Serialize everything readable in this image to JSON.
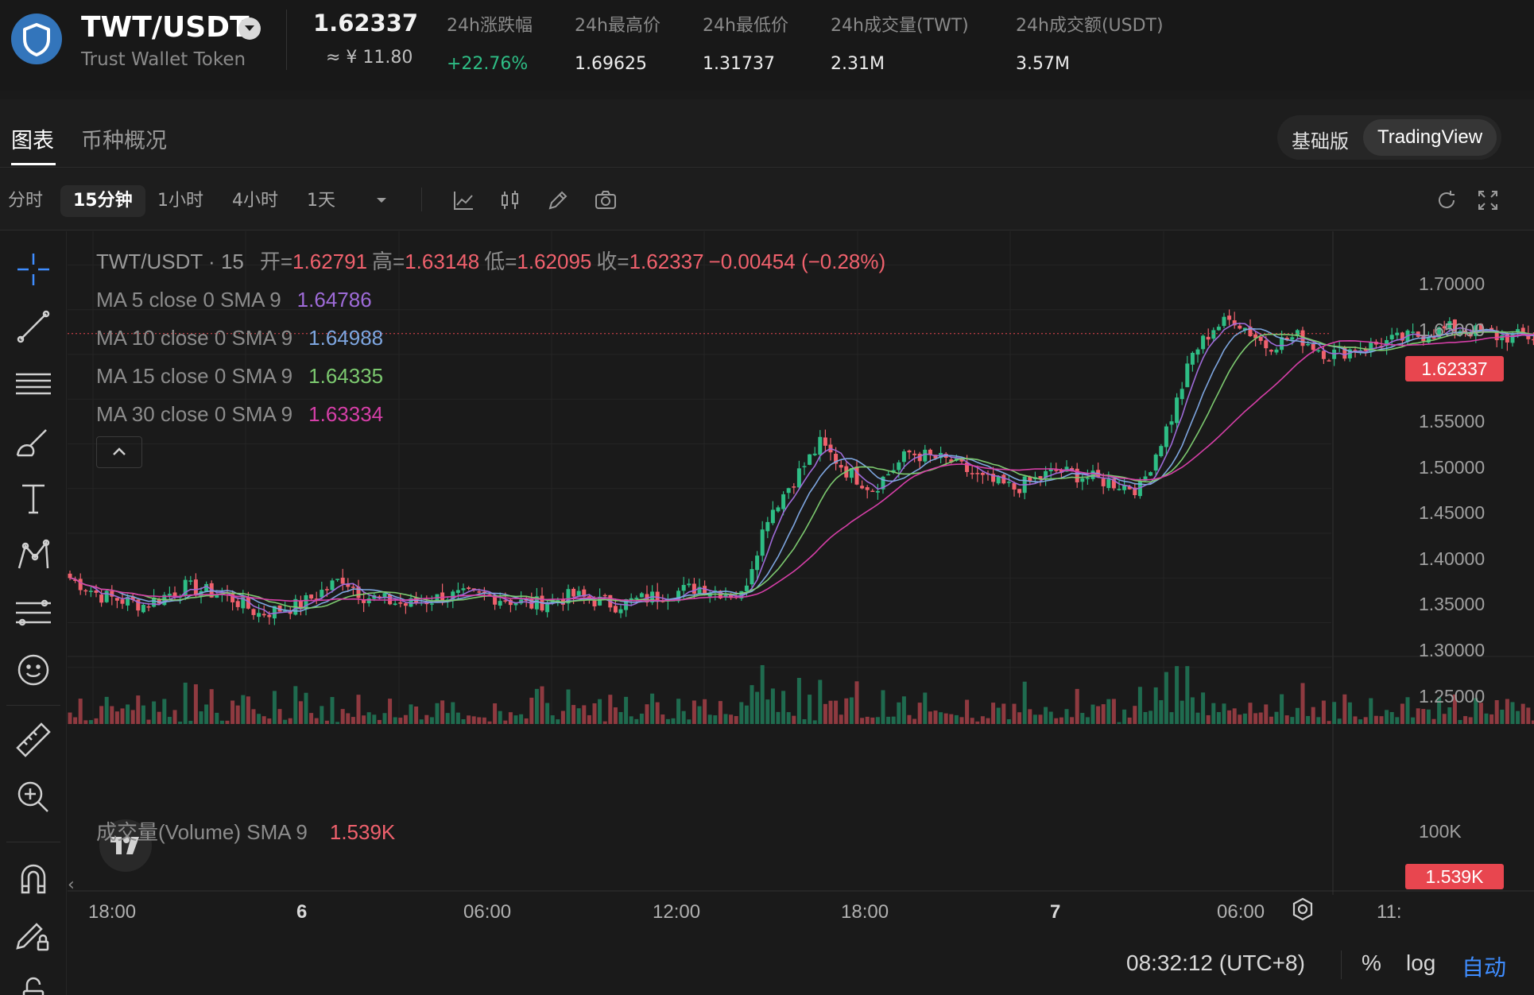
{
  "ticker": {
    "pair": "TWT/USDT",
    "name": "Trust Wallet Token",
    "price": "1.62337",
    "price_cny": "≈ ¥ 11.80",
    "stats": [
      {
        "label": "24h涨跌幅",
        "value": "+22.76%",
        "trend": "up"
      },
      {
        "label": "24h最高价",
        "value": "1.69625"
      },
      {
        "label": "24h最低价",
        "value": "1.31737"
      },
      {
        "label": "24h成交量(TWT)",
        "value": "2.31M"
      },
      {
        "label": "24h成交额(USDT)",
        "value": "3.57M"
      }
    ]
  },
  "tabs": [
    {
      "label": "图表",
      "active": true
    },
    {
      "label": "币种概况",
      "active": false
    }
  ],
  "view_switch": {
    "basic": "基础版",
    "tradingview": "TradingView",
    "active": "TradingView"
  },
  "intervals": [
    {
      "label": "分时",
      "active": false
    },
    {
      "label": "15分钟",
      "active": true
    },
    {
      "label": "1小时",
      "active": false
    },
    {
      "label": "4小时",
      "active": false
    },
    {
      "label": "1天",
      "active": false
    }
  ],
  "toolbar_icons": [
    "chevron-down-icon",
    "line-chart-icon",
    "candlestick-icon",
    "pencil-icon",
    "camera-icon",
    "refresh-icon",
    "fullscreen-icon"
  ],
  "draw_tools": [
    "crosshair-icon",
    "trend-line-icon",
    "horizontal-lines-icon",
    "brush-icon",
    "text-icon",
    "pattern-icon",
    "prediction-icon",
    "emoji-icon",
    "ruler-icon",
    "zoom-in-icon",
    "magnet-icon",
    "lock-pencil-icon",
    "lock-icon"
  ],
  "legend": {
    "symbol": "TWT/USDT · 15",
    "open_label": "开=",
    "open": "1.62791",
    "high_label": "高=",
    "high": "1.63148",
    "low_label": "低=",
    "low": "1.62095",
    "close_label": "收=",
    "close": "1.62337",
    "change": "−0.00454 (−0.28%)",
    "ma": [
      {
        "label": "MA 5 close 0 SMA 9",
        "value": "1.64786",
        "color": "#9e6bd8"
      },
      {
        "label": "MA 10 close 0 SMA 9",
        "value": "1.64988",
        "color": "#7ea6e0"
      },
      {
        "label": "MA 15 close 0 SMA 9",
        "value": "1.64335",
        "color": "#7cc96f"
      },
      {
        "label": "MA 30 close 0 SMA 9",
        "value": "1.63334",
        "color": "#d63fa8"
      }
    ],
    "volume_label": "成交量(Volume) SMA 9",
    "volume_value": "1.539K"
  },
  "price_axis": [
    "1.70000",
    "1.65000",
    "1.60000",
    "1.55000",
    "1.50000",
    "1.45000",
    "1.40000",
    "1.35000",
    "1.30000",
    "1.25000"
  ],
  "current_price_tag": "1.62337",
  "volume_axis": [
    "100K"
  ],
  "volume_tag": "1.539K",
  "time_axis": [
    {
      "label": "18:00",
      "bold": false
    },
    {
      "label": "6",
      "bold": true
    },
    {
      "label": "06:00",
      "bold": false
    },
    {
      "label": "12:00",
      "bold": false
    },
    {
      "label": "18:00",
      "bold": false
    },
    {
      "label": "7",
      "bold": true
    },
    {
      "label": "06:00",
      "bold": false
    },
    {
      "label": "11:",
      "bold": false
    }
  ],
  "status": {
    "clock": "08:32:12 (UTC+8)",
    "percent": "%",
    "log": "log",
    "auto": "自动"
  },
  "colors": {
    "up": "#2ebd85",
    "down": "#f0616d",
    "background": "#1a1a1a",
    "accent": "#3f8dff"
  },
  "chart_data": {
    "type": "candlestick",
    "interval": "15m",
    "ylim": [
      1.24,
      1.72
    ],
    "x": [
      "18:00",
      "6",
      "06:00",
      "12:00",
      "18:00",
      "7",
      "06:00",
      "11:"
    ],
    "close_trend": [
      [
        0,
        1.35
      ],
      [
        6,
        1.33
      ],
      [
        14,
        1.32
      ],
      [
        22,
        1.34
      ],
      [
        30,
        1.33
      ],
      [
        36,
        1.31
      ],
      [
        44,
        1.32
      ],
      [
        52,
        1.35
      ],
      [
        56,
        1.33
      ],
      [
        64,
        1.32
      ],
      [
        72,
        1.33
      ],
      [
        80,
        1.33
      ],
      [
        88,
        1.32
      ],
      [
        96,
        1.33
      ],
      [
        104,
        1.32
      ],
      [
        112,
        1.33
      ],
      [
        120,
        1.34
      ],
      [
        128,
        1.33
      ],
      [
        133,
        1.42
      ],
      [
        138,
        1.46
      ],
      [
        143,
        1.5
      ],
      [
        148,
        1.47
      ],
      [
        153,
        1.45
      ],
      [
        160,
        1.49
      ],
      [
        168,
        1.48
      ],
      [
        174,
        1.46
      ],
      [
        180,
        1.45
      ],
      [
        188,
        1.47
      ],
      [
        196,
        1.46
      ],
      [
        204,
        1.45
      ],
      [
        210,
        1.53
      ],
      [
        214,
        1.6
      ],
      [
        218,
        1.63
      ],
      [
        222,
        1.64
      ],
      [
        228,
        1.61
      ],
      [
        234,
        1.62
      ],
      [
        240,
        1.6
      ],
      [
        248,
        1.61
      ],
      [
        256,
        1.62
      ],
      [
        264,
        1.63
      ],
      [
        272,
        1.62
      ],
      [
        280,
        1.62
      ],
      [
        288,
        1.64
      ],
      [
        292,
        1.68
      ],
      [
        296,
        1.66
      ],
      [
        300,
        1.63
      ]
    ],
    "last": {
      "open": 1.62791,
      "high": 1.63148,
      "low": 1.62095,
      "close": 1.62337
    },
    "volume_ylim": [
      0,
      100000
    ]
  }
}
